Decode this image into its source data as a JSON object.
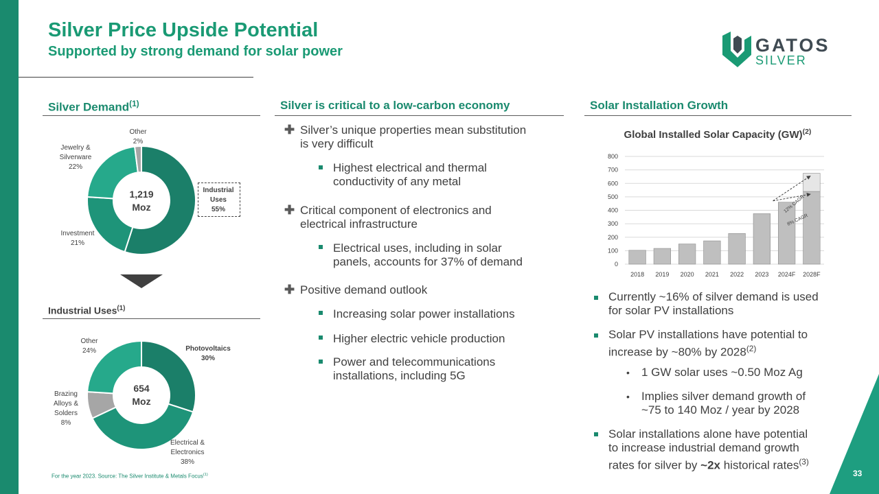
{
  "header": {
    "title": "Silver Price Upside Potential",
    "subtitle": "Supported by strong demand for solar power",
    "logo_main": "GATOS",
    "logo_sub": "SILVER"
  },
  "colors": {
    "brand_green": "#1a8a6e",
    "dark_teal": "#1b7f69",
    "light_teal": "#26a98b",
    "grey": "#a6a6a6",
    "bar_grey": "#bfbfbf"
  },
  "demand": {
    "heading": "Silver Demand",
    "heading_sup": "(1)",
    "center_value": "1,219",
    "center_unit": "Moz",
    "labels": {
      "industrial": [
        "Industrial",
        "Uses",
        "55%"
      ],
      "investment": [
        "Investment",
        "21%"
      ],
      "jewelry": [
        "Jewelry &",
        "Silverware",
        "22%"
      ],
      "other": [
        "Other",
        "2%"
      ]
    },
    "segments": [
      {
        "name": "Industrial Uses",
        "value": 55,
        "color": "#1b7f69"
      },
      {
        "name": "Investment",
        "value": 21,
        "color": "#1e9479"
      },
      {
        "name": "Jewelry & Silverware",
        "value": 22,
        "color": "#26a98b"
      },
      {
        "name": "Other",
        "value": 2,
        "color": "#a6a6a6"
      }
    ]
  },
  "industrial": {
    "heading": "Industrial Uses",
    "heading_sup": "(1)",
    "center_value": "654",
    "center_unit": "Moz",
    "labels": {
      "pv": [
        "Photovoltaics",
        "30%"
      ],
      "electrical": [
        "Electrical &",
        "Electronics",
        "38%"
      ],
      "brazing": [
        "Brazing",
        "Alloys &",
        "Solders",
        "8%"
      ],
      "other": [
        "Other",
        "24%"
      ]
    },
    "segments": [
      {
        "name": "Photovoltaics",
        "value": 30,
        "color": "#1b7f69"
      },
      {
        "name": "Electrical & Electronics",
        "value": 38,
        "color": "#1e9479"
      },
      {
        "name": "Brazing Alloys & Solders",
        "value": 8,
        "color": "#a6a6a6"
      },
      {
        "name": "Other",
        "value": 24,
        "color": "#26a98b"
      }
    ]
  },
  "footnote": "For the year 2023.   Source: The Silver Institute & Metals Focus",
  "footnote_sup": "(1)",
  "critical": {
    "heading": "Silver is critical to a low-carbon economy",
    "p1": [
      "Silver’s unique properties mean substitution",
      "is very difficult"
    ],
    "p1_sub": [
      "Highest electrical and thermal",
      "conductivity of any metal"
    ],
    "p2": [
      "Critical component of electronics and",
      "electrical infrastructure"
    ],
    "p2_sub": [
      "Electrical uses, including in solar",
      "panels, accounts for 37% of demand"
    ],
    "p3": "Positive demand outlook",
    "p3_sub1": "Increasing solar power installations",
    "p3_sub2": "Higher electric vehicle production",
    "p3_sub3": [
      "Power and telecommunications",
      "installations, including 5G"
    ]
  },
  "solar": {
    "heading": "Solar Installation Growth",
    "chart_title": "Global Installed Solar Capacity (GW)",
    "chart_title_sup": "(2)",
    "b1": [
      "Currently ~16% of silver demand is used",
      "for solar PV installations"
    ],
    "b2": [
      "Solar PV installations have potential to",
      "increase by ~80% by 2028"
    ],
    "b2_sup": "(2)",
    "b2_sub1": "1 GW solar uses ~0.50 Moz Ag",
    "b2_sub2": [
      "Implies silver demand growth of",
      "~75 to 140 Moz / year by 2028"
    ],
    "b3": [
      "Solar installations alone have potential",
      "to increase industrial demand growth"
    ],
    "b3_pre": "rates for silver by ",
    "b3_bold": "~2x",
    "b3_post": " historical rates",
    "b3_sup": "(3)"
  },
  "chart_data": {
    "type": "bar",
    "title": "Global Installed Solar Capacity (GW)",
    "categories": [
      "2018",
      "2019",
      "2020",
      "2021",
      "2022",
      "2023",
      "2024F",
      "2028F"
    ],
    "values": [
      103,
      117,
      150,
      173,
      228,
      375,
      460,
      540
    ],
    "range_top_2028F": 675,
    "ylim": [
      0,
      800
    ],
    "yticks": [
      0,
      100,
      200,
      300,
      400,
      500,
      600,
      700,
      800
    ],
    "grid": true,
    "annotations": [
      "12% CAGR",
      "8% CAGR"
    ]
  },
  "page_number": "33"
}
